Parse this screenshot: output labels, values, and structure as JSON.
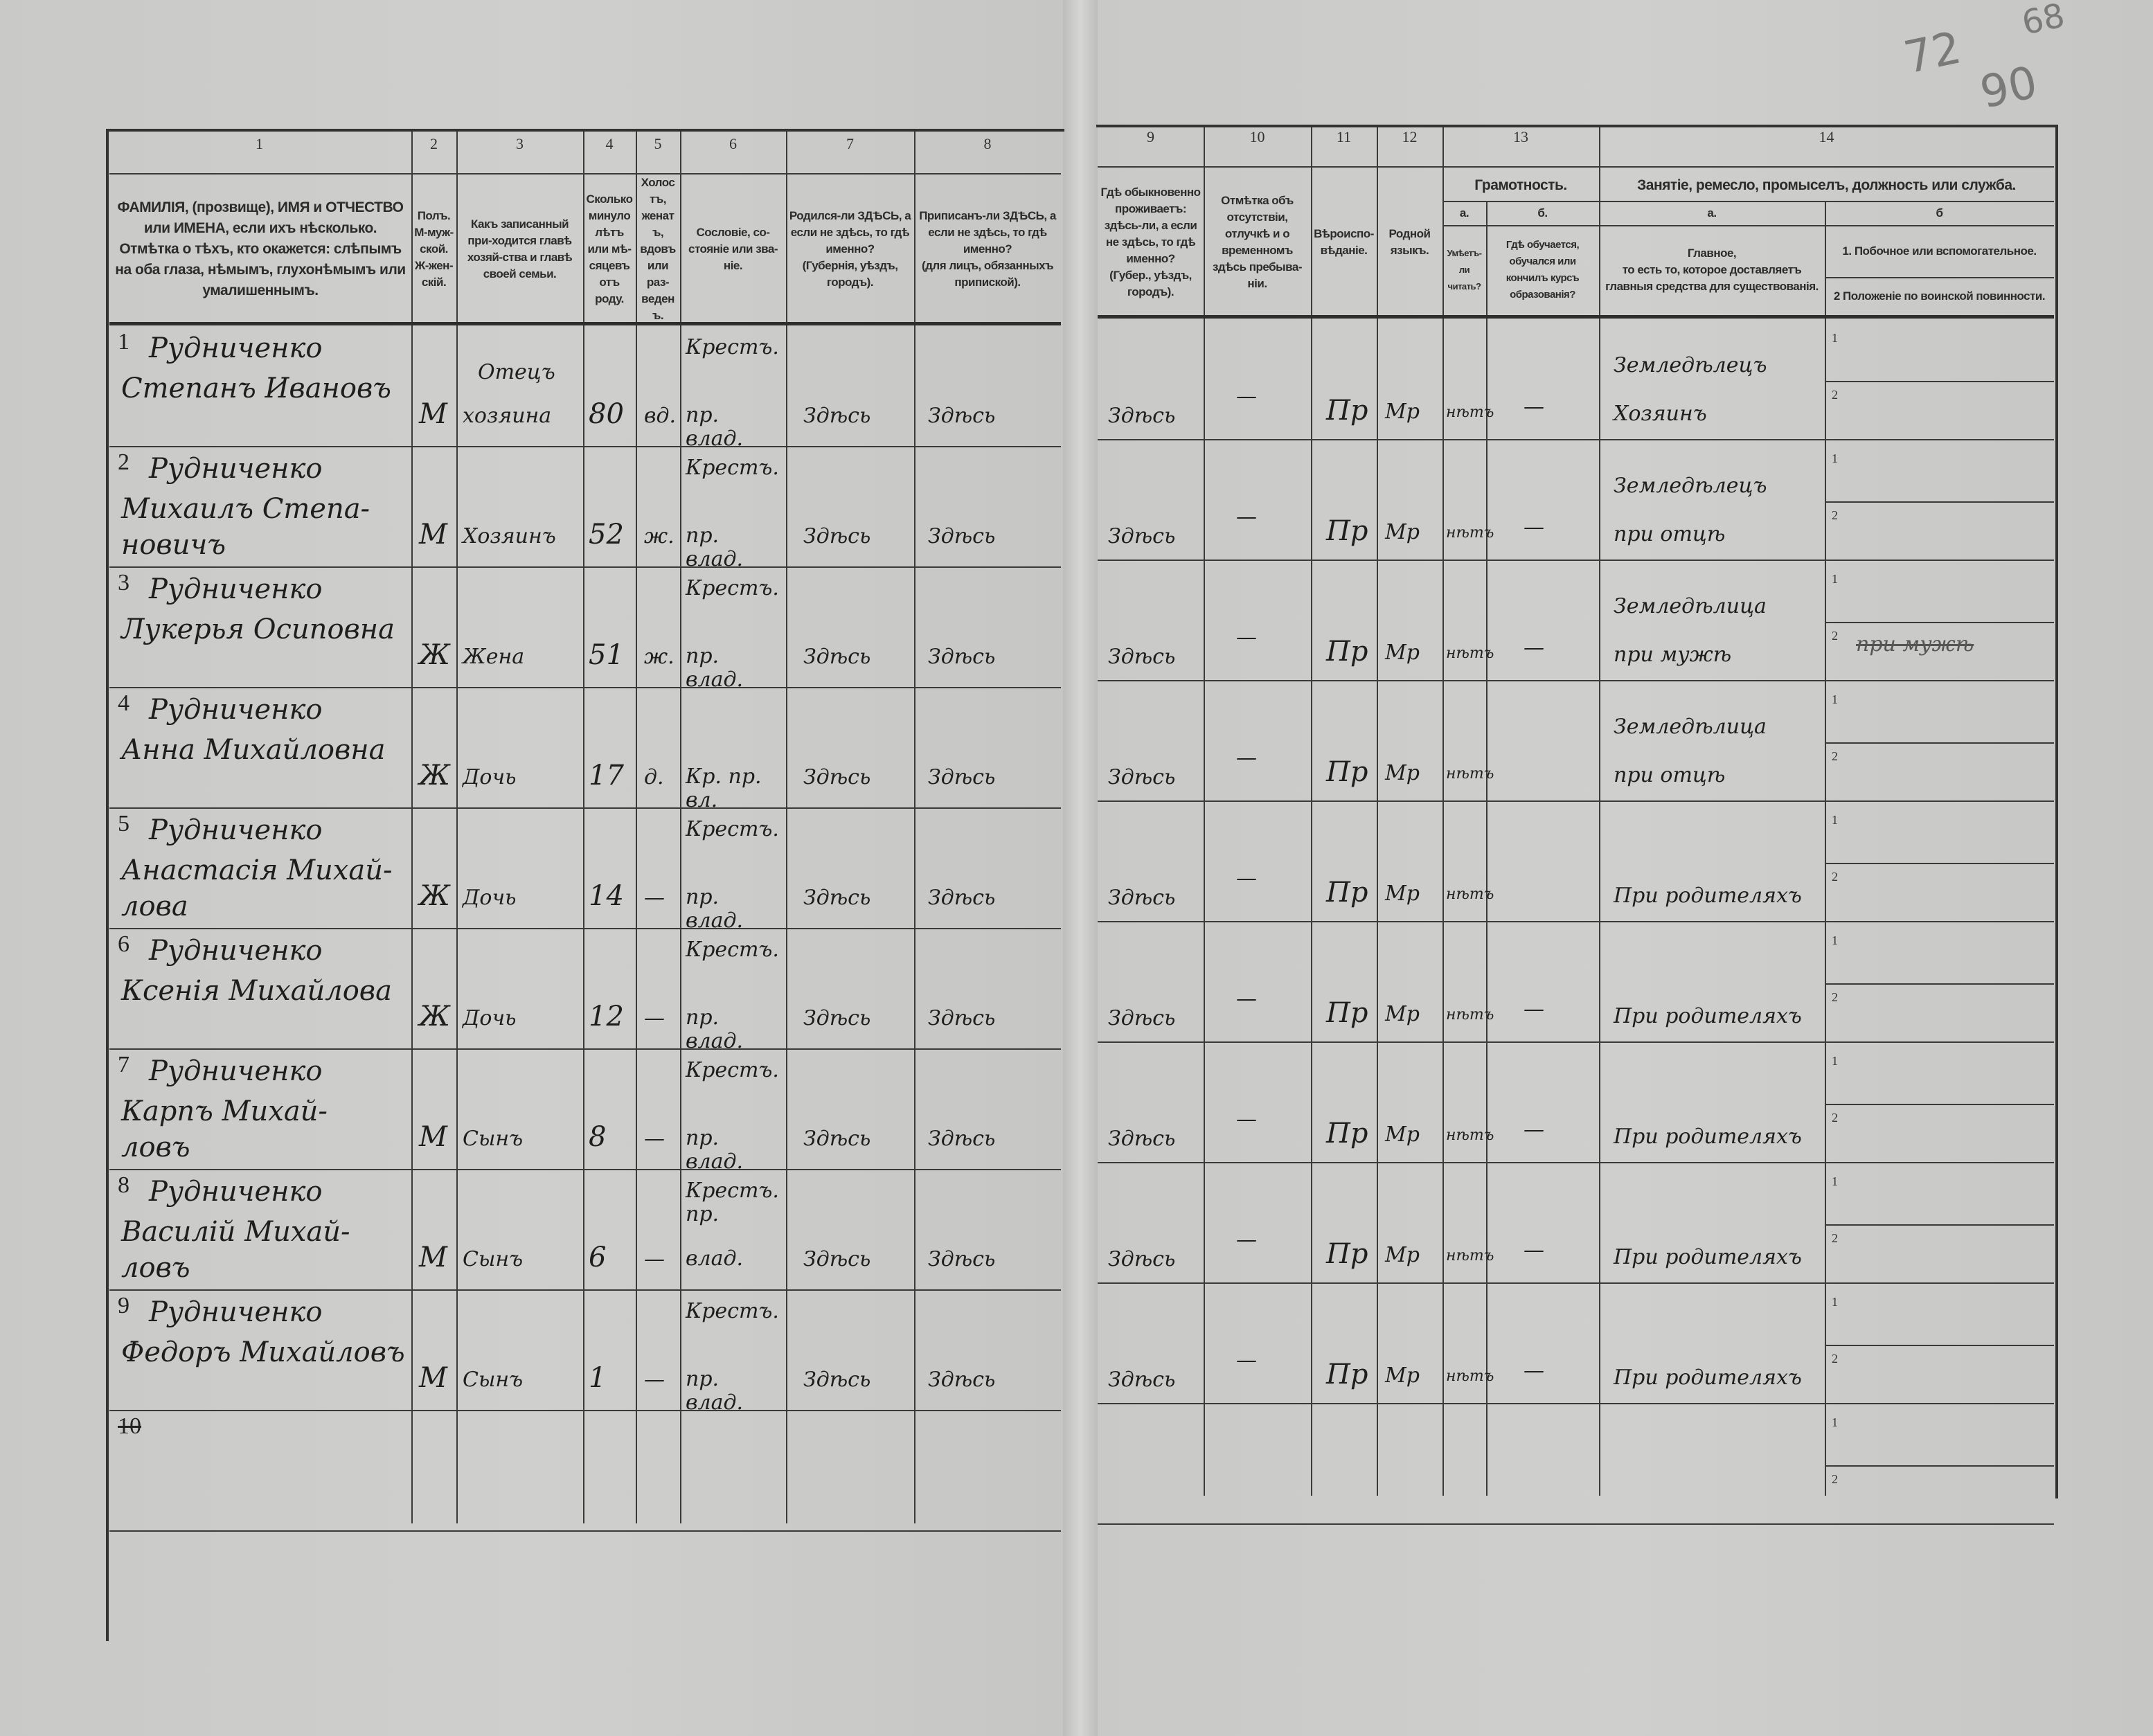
{
  "archive_marks": {
    "a": "72",
    "b": "68",
    "c": "90"
  },
  "header": {
    "col_numbers": [
      "1",
      "2",
      "3",
      "4",
      "5",
      "6",
      "7",
      "8",
      "9",
      "10",
      "11",
      "12",
      "13",
      "14"
    ],
    "c1": "ФАМИЛІЯ, (прозвище), ИМЯ и ОТЧЕСТВО или ИМЕНА, если ихъ нѣсколько.\nОтмѣтка о тѣхъ, кто окажется: слѣпымъ на оба глаза, нѣмымъ, глухонѣмымъ или умалишеннымъ.",
    "c2": "Полъ.\nМ-муж-ской.\nЖ-жен-скій.",
    "c3": "Какъ записанный при-ходится главѣ хозяй-ства и главѣ своей семьи.",
    "c4": "Сколько минуло лѣтъ или мѣ-сяцевъ отъ роду.",
    "c5": "Холостъ, женатъ, вдовъ или раз-веденъ.",
    "c6": "Сословіе, со-стояніе или зва-ніе.",
    "c7": "Родился-ли ЗДѢСЬ, а если не здѣсь, то гдѣ именно?\n(Губернія, уѣздъ, городъ).",
    "c8": "Приписанъ-ли ЗДѢСЬ, а если не здѣсь, то гдѣ именно?\n(для лицъ, обязанныхъ припиской).",
    "c9": "Гдѣ обыкновенно проживаетъ: здѣсь-ли, а если не здѣсь, то гдѣ именно?\n(Губер., уѣздъ, городъ).",
    "c10": "Отмѣтка объ отсутствіи, отлучкѣ и о временномъ здѣсь пребыва-ніи.",
    "c11": "Вѣроиспо-вѣданіе.",
    "c12": "Родной языкъ.",
    "c13_group": "Грамотность.",
    "c13a_letter": "а.",
    "c13b_letter": "б.",
    "c13a": "Умѣетъ-ли читать?",
    "c13b": "Гдѣ обучается, обучался или кончилъ курсъ образованія?",
    "c14_group": "Занятіе, ремесло, промыселъ, должность или служба.",
    "c14a_letter": "а.",
    "c14b_letter": "б",
    "c14a": "Главное,\nто есть то, которое доставляетъ главныя средства для существованія.",
    "c14b_1": "1. Побочное или вспомогательное.",
    "c14b_2": "2 Положеніе по воинской повинности."
  },
  "sub_line_labels": [
    "1",
    "2"
  ],
  "rows": [
    {
      "num": "1",
      "surname": "Рудниченко",
      "given": "Степанъ Ивановъ",
      "sex": "М",
      "relation_top": "Отецъ",
      "relation": "хозяина",
      "age": "80",
      "marital": "вд.",
      "estate_top": "Крестъ.",
      "estate": "пр. влад.",
      "born": "Здѣсь",
      "registered": "Здѣсь",
      "resides": "Здѣсь",
      "absence": "—",
      "religion": "Пр",
      "language": "Мр",
      "literate": "нѣтъ",
      "education": "—",
      "occ_top": "Земледѣлецъ",
      "occ": "Хозяинъ",
      "occ_b": ""
    },
    {
      "num": "2",
      "surname": "Рудниченко",
      "given": "Михаилъ Степа-",
      "given2": "новичъ",
      "sex": "М",
      "relation_top": "",
      "relation": "Хозяинъ",
      "age": "52",
      "marital": "ж.",
      "estate_top": "Крестъ.",
      "estate": "пр. влад.",
      "born": "Здѣсь",
      "registered": "Здѣсь",
      "resides": "Здѣсь",
      "absence": "—",
      "religion": "Пр",
      "language": "Мр",
      "literate": "нѣтъ",
      "education": "—",
      "occ_top": "Земледѣлецъ",
      "occ": "при отцѣ",
      "occ_b": ""
    },
    {
      "num": "3",
      "surname": "Рудниченко",
      "given": "Лукерья Осиповна",
      "sex": "Ж",
      "relation_top": "",
      "relation": "Жена",
      "age": "51",
      "marital": "ж.",
      "estate_top": "Крестъ.",
      "estate": "пр. влад.",
      "born": "Здѣсь",
      "registered": "Здѣсь",
      "resides": "Здѣсь",
      "absence": "—",
      "religion": "Пр",
      "language": "Мр",
      "literate": "нѣтъ",
      "education": "—",
      "occ_top": "Земледѣлица",
      "occ": "при мужѣ",
      "occ_b": "при мужѣ"
    },
    {
      "num": "4",
      "surname": "Рудниченко",
      "given": "Анна Михайловна",
      "sex": "Ж",
      "relation_top": "",
      "relation": "Дочь",
      "age": "17",
      "marital": "д.",
      "estate_top": "",
      "estate": "Кр. пр. вл.",
      "born": "Здѣсь",
      "registered": "Здѣсь",
      "resides": "Здѣсь",
      "absence": "—",
      "religion": "Пр",
      "language": "Мр",
      "literate": "нѣтъ",
      "education": "",
      "occ_top": "Земледѣлица",
      "occ": "при отцѣ",
      "occ_b": ""
    },
    {
      "num": "5",
      "surname": "Рудниченко",
      "given": "Анастасія Михай-",
      "given2": "лова",
      "sex": "Ж",
      "relation_top": "",
      "relation": "Дочь",
      "age": "14",
      "marital": "—",
      "estate_top": "Крестъ.",
      "estate": "пр. влад.",
      "born": "Здѣсь",
      "registered": "Здѣсь",
      "resides": "Здѣсь",
      "absence": "—",
      "religion": "Пр",
      "language": "Мр",
      "literate": "нѣтъ",
      "education": "",
      "occ_top": "",
      "occ": "При родителяхъ",
      "occ_b": ""
    },
    {
      "num": "6",
      "surname": "Рудниченко",
      "given": "Ксенія Михайлова",
      "sex": "Ж",
      "relation_top": "",
      "relation": "Дочь",
      "age": "12",
      "marital": "—",
      "estate_top": "Крестъ.",
      "estate": "пр. влад.",
      "born": "Здѣсь",
      "registered": "Здѣсь",
      "resides": "Здѣсь",
      "absence": "—",
      "religion": "Пр",
      "language": "Мр",
      "literate": "нѣтъ",
      "education": "—",
      "occ_top": "",
      "occ": "При родителяхъ",
      "occ_b": ""
    },
    {
      "num": "7",
      "surname": "Рудниченко",
      "given": "Карпъ Михай-",
      "given2": "ловъ",
      "sex": "М",
      "relation_top": "",
      "relation": "Сынъ",
      "age": "8",
      "marital": "—",
      "estate_top": "Крестъ.",
      "estate": "пр. влад.",
      "born": "Здѣсь",
      "registered": "Здѣсь",
      "resides": "Здѣсь",
      "absence": "—",
      "religion": "Пр",
      "language": "Мр",
      "literate": "нѣтъ",
      "education": "—",
      "occ_top": "",
      "occ": "При родителяхъ",
      "occ_b": ""
    },
    {
      "num": "8",
      "surname": "Рудниченко",
      "given": "Василій Михай-",
      "given2": "ловъ",
      "sex": "М",
      "relation_top": "",
      "relation": "Сынъ",
      "age": "6",
      "marital": "—",
      "estate_top": "Крестъ. пр.",
      "estate": "влад.",
      "born": "Здѣсь",
      "registered": "Здѣсь",
      "resides": "Здѣсь",
      "absence": "—",
      "religion": "Пр",
      "language": "Мр",
      "literate": "нѣтъ",
      "education": "—",
      "occ_top": "",
      "occ": "При родителяхъ",
      "occ_b": ""
    },
    {
      "num": "9",
      "surname": "Рудниченко",
      "given": "Федоръ Михайловъ",
      "sex": "М",
      "relation_top": "",
      "relation": "Сынъ",
      "age": "1",
      "marital": "—",
      "estate_top": "Крестъ.",
      "estate": "пр. влад.",
      "born": "Здѣсь",
      "registered": "Здѣсь",
      "resides": "Здѣсь",
      "absence": "—",
      "religion": "Пр",
      "language": "Мр",
      "literate": "нѣтъ",
      "education": "—",
      "occ_top": "",
      "occ": "При родителяхъ",
      "occ_b": ""
    }
  ],
  "row10_num": "10"
}
